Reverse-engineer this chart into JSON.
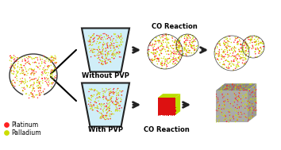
{
  "bg_color": "#ffffff",
  "pt_color": "#ff2020",
  "pd_color": "#ccdd00",
  "graphene_color": "#222222",
  "beaker_fill": "#d0eef8",
  "beaker_edge": "#222222",
  "arrow_color": "#222222",
  "label_with_pvp": "With PVP",
  "label_without_pvp": "Without PVP",
  "label_co_top": "CO Reaction",
  "label_co_bottom": "CO Reaction",
  "label_platinum": "Platinum",
  "label_palladium": "Palladium",
  "cube_red": "#dd1111",
  "cube_yellow": "#bbdd00",
  "figsize": [
    3.54,
    1.89
  ],
  "dpi": 100
}
